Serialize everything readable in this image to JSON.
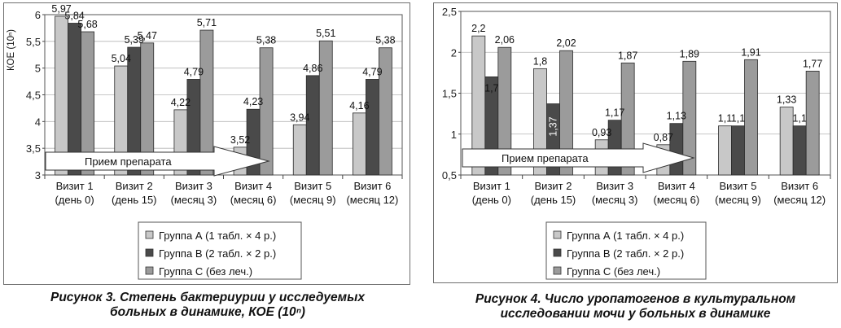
{
  "colors": {
    "group_a": "#c8c8c8",
    "group_b": "#4a4a4a",
    "group_c": "#9b9b9b",
    "arrow_fill": "#ffffff"
  },
  "legend": [
    {
      "label": "Группа А (1 табл. × 4 р.)",
      "color_key": "group_a"
    },
    {
      "label": "Группа В (2 табл. × 2 р.)",
      "color_key": "group_b"
    },
    {
      "label": "Группа С (без леч.)",
      "color_key": "group_c"
    }
  ],
  "chart_data": [
    {
      "type": "bar",
      "ylabel": "КОЕ (10ⁿ)",
      "ylim": [
        3,
        6
      ],
      "yticks": [
        {
          "value": 3,
          "label": "3"
        },
        {
          "value": 3.5,
          "label": "3,5"
        },
        {
          "value": 4,
          "label": "4"
        },
        {
          "value": 4.5,
          "label": "4,5"
        },
        {
          "value": 5,
          "label": "5"
        },
        {
          "value": 5.5,
          "label": "5,5"
        },
        {
          "value": 6,
          "label": "6"
        }
      ],
      "categories": [
        [
          "Визит 1",
          "(день 0)"
        ],
        [
          "Визит 2",
          "(день 15)"
        ],
        [
          "Визит 3",
          "(месяц 3)"
        ],
        [
          "Визит 4",
          "(месяц 6)"
        ],
        [
          "Визит 5",
          "(месяц 9)"
        ],
        [
          "Визит 6",
          "(месяц 12)"
        ]
      ],
      "series": [
        {
          "name": "Группа А (1 табл. × 4 р.)",
          "values": [
            5.97,
            5.04,
            4.22,
            3.52,
            3.94,
            4.16
          ],
          "labels": [
            "5,97",
            "5,04",
            "4,22",
            "3,52",
            "3,94",
            "4,16"
          ]
        },
        {
          "name": "Группа В (2 табл. × 2 р.)",
          "values": [
            5.84,
            5.39,
            4.79,
            4.23,
            4.86,
            4.79
          ],
          "labels": [
            "5,84",
            "5,39",
            "4,79",
            "4,23",
            "4,86",
            "4,79"
          ]
        },
        {
          "name": "Группа С (без леч.)",
          "values": [
            5.68,
            5.47,
            5.71,
            5.38,
            5.51,
            5.38
          ],
          "labels": [
            "5,68",
            "5,47",
            "5,71",
            "5,38",
            "5,51",
            "5,38"
          ]
        }
      ],
      "annotation": "Прием препарата",
      "caption": [
        "Рисунок 3. Степень бактериурии у исследуемых",
        "больных в динамике, КОЕ (10ⁿ)"
      ]
    },
    {
      "type": "bar",
      "ylabel": "",
      "ylim": [
        0.5,
        2.5
      ],
      "yticks": [
        {
          "value": 0.5,
          "label": "0,5"
        },
        {
          "value": 1,
          "label": "1"
        },
        {
          "value": 1.5,
          "label": "1,5"
        },
        {
          "value": 2,
          "label": "2"
        },
        {
          "value": 2.5,
          "label": "2,5"
        }
      ],
      "categories": [
        [
          "Визит 1",
          "(день 0)"
        ],
        [
          "Визит 2",
          "(день 15)"
        ],
        [
          "Визит 3",
          "(месяц 3)"
        ],
        [
          "Визит 4",
          "(месяц 6)"
        ],
        [
          "Визит 5",
          "(месяц 9)"
        ],
        [
          "Визит 6",
          "(месяц 12)"
        ]
      ],
      "series": [
        {
          "name": "Группа А (1 табл. × 4 р.)",
          "values": [
            2.2,
            1.8,
            0.93,
            0.87,
            1.1,
            1.33
          ],
          "labels": [
            "2,2",
            "1,8",
            "0,93",
            "0,87",
            "1,1",
            "1,33"
          ]
        },
        {
          "name": "Группа В (2 табл. × 2 р.)",
          "values": [
            1.7,
            1.37,
            1.17,
            1.13,
            1.1,
            1.1
          ],
          "labels": [
            "1,7",
            "1,37",
            "1,17",
            "1,13",
            "1,1",
            "1,1"
          ]
        },
        {
          "name": "Группа С (без леч.)",
          "values": [
            2.06,
            2.02,
            1.87,
            1.89,
            1.91,
            1.77
          ],
          "labels": [
            "2,06",
            "2,02",
            "1,87",
            "1,89",
            "1,91",
            "1,77"
          ]
        }
      ],
      "annotation": "Прием препарата",
      "caption": [
        "Рисунок 4. Число уропатогенов в культуральном",
        "исследовании мочи у больных в динамике"
      ]
    }
  ]
}
